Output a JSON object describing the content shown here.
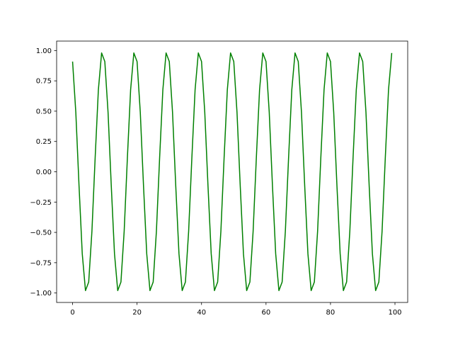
{
  "chart_data": {
    "type": "line",
    "title": "",
    "xlabel": "",
    "ylabel": "",
    "xlim": [
      -4.95,
      103.95
    ],
    "ylim": [
      -1.078,
      1.078
    ],
    "grid": false,
    "xticks": [
      0,
      20,
      40,
      60,
      80,
      100
    ],
    "xtick_labels": [
      "0",
      "20",
      "40",
      "60",
      "80",
      "100"
    ],
    "yticks": [
      -1.0,
      -0.75,
      -0.5,
      -0.25,
      0.0,
      0.25,
      0.5,
      0.75,
      1.0
    ],
    "ytick_labels": [
      "−1.00",
      "−0.75",
      "−0.50",
      "−0.25",
      "0.00",
      "0.25",
      "0.50",
      "0.75",
      "1.00"
    ],
    "series": [
      {
        "color": "#008000",
        "x_start": 0,
        "x_step": 1,
        "values": [
          0.909,
          0.491,
          -0.115,
          -0.676,
          -0.98,
          -0.909,
          -0.491,
          0.115,
          0.676,
          0.98,
          0.909,
          0.491,
          -0.115,
          -0.676,
          -0.98,
          -0.909,
          -0.491,
          0.115,
          0.676,
          0.98,
          0.909,
          0.491,
          -0.115,
          -0.676,
          -0.98,
          -0.909,
          -0.491,
          0.115,
          0.676,
          0.98,
          0.909,
          0.491,
          -0.115,
          -0.676,
          -0.98,
          -0.909,
          -0.491,
          0.115,
          0.676,
          0.98,
          0.909,
          0.491,
          -0.115,
          -0.676,
          -0.98,
          -0.909,
          -0.491,
          0.115,
          0.676,
          0.98,
          0.909,
          0.491,
          -0.115,
          -0.676,
          -0.98,
          -0.909,
          -0.491,
          0.115,
          0.676,
          0.98,
          0.909,
          0.491,
          -0.115,
          -0.676,
          -0.98,
          -0.909,
          -0.491,
          0.115,
          0.676,
          0.98,
          0.909,
          0.491,
          -0.115,
          -0.676,
          -0.98,
          -0.909,
          -0.491,
          0.115,
          0.676,
          0.98,
          0.909,
          0.491,
          -0.115,
          -0.676,
          -0.98,
          -0.909,
          -0.491,
          0.115,
          0.676,
          0.98,
          0.909,
          0.491,
          -0.115,
          -0.676,
          -0.98,
          -0.909,
          -0.491,
          0.115,
          0.676,
          0.98
        ]
      }
    ]
  }
}
